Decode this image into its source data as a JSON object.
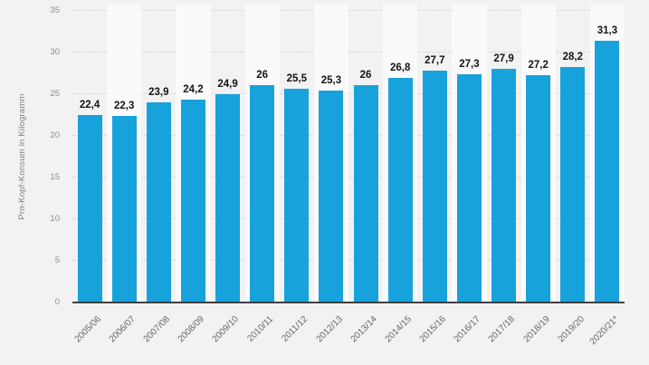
{
  "page": {
    "background_color": "#f2f2f2"
  },
  "chart_data": {
    "type": "bar",
    "title": "",
    "xlabel": "",
    "ylabel": "Pro-Kopf-Konsum in Kilogramm",
    "categories": [
      "2005/06",
      "2006/07",
      "2007/08",
      "2008/09",
      "2009/10",
      "2010/11",
      "2011/12",
      "2012/13",
      "2013/14",
      "2014/15",
      "2015/16",
      "2016/17",
      "2017/18",
      "2018/19",
      "2019/20",
      "2020/21*"
    ],
    "values": [
      22.4,
      22.3,
      23.9,
      24.2,
      24.9,
      26,
      25.5,
      25.3,
      26,
      26.8,
      27.7,
      27.3,
      27.9,
      27.2,
      28.2,
      31.3
    ],
    "value_labels": [
      "22,4",
      "22,3",
      "23,9",
      "24,2",
      "24,9",
      "26",
      "25,5",
      "25,3",
      "26",
      "26,8",
      "27,7",
      "27,3",
      "27,9",
      "27,2",
      "28,2",
      "31,3"
    ],
    "y_ticks": [
      0,
      5,
      10,
      15,
      20,
      25,
      30,
      35
    ],
    "ylim": [
      0,
      35
    ],
    "grid": "horizontal-dotted",
    "legend": "none",
    "colors": {
      "bar": "#18a2dc",
      "axis_line": "#404040",
      "gridline": "#cfcfcf",
      "column_stripe": "#fafafa",
      "y_tick_label": "#8c8c8c",
      "x_category_label": "#666666",
      "value_label": "#141414",
      "y_title": "#808080",
      "background": "#f2f2f2"
    }
  }
}
